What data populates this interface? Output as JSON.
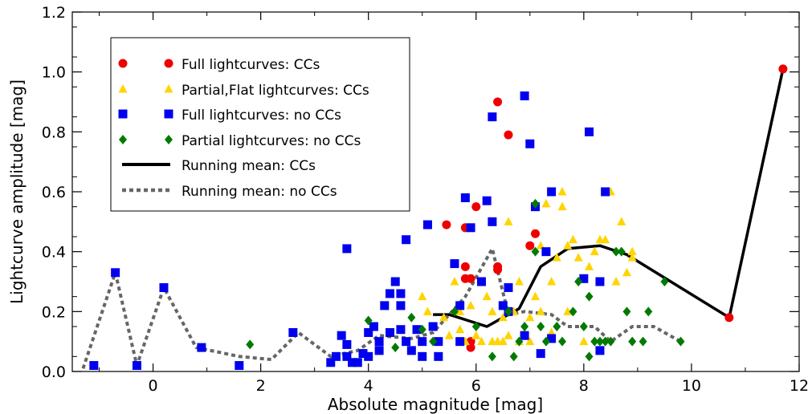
{
  "chart_data": {
    "type": "scatter",
    "title": "",
    "xlabel": "Absolute magnitude [mag]",
    "ylabel": "Lightcurve amplitude [mag]",
    "xlim": [
      -1.5,
      12
    ],
    "ylim": [
      0,
      1.2
    ],
    "xticks": [
      "0",
      "2",
      "4",
      "6",
      "8",
      "10",
      "12"
    ],
    "yticks": [
      "0.0",
      "0.2",
      "0.4",
      "0.6",
      "0.8",
      "1.0",
      "1.2"
    ],
    "grid": false,
    "legend_position": "top-left",
    "series": [
      {
        "name": "Full lightcurves: CCs",
        "marker": "circle",
        "color": "#ee0000",
        "points": [
          [
            5.45,
            0.49
          ],
          [
            5.8,
            0.48
          ],
          [
            5.8,
            0.35
          ],
          [
            5.8,
            0.31
          ],
          [
            5.9,
            0.31
          ],
          [
            5.9,
            0.1
          ],
          [
            5.9,
            0.08
          ],
          [
            6.0,
            0.55
          ],
          [
            6.4,
            0.9
          ],
          [
            6.4,
            0.35
          ],
          [
            6.4,
            0.34
          ],
          [
            6.6,
            0.79
          ],
          [
            7.0,
            0.42
          ],
          [
            7.1,
            0.46
          ],
          [
            10.7,
            0.18
          ],
          [
            11.7,
            1.01
          ]
        ]
      },
      {
        "name": "Partial,Flat lightcurves: CCs",
        "marker": "triangle",
        "color": "#ffd400",
        "points": [
          [
            5.0,
            0.25
          ],
          [
            5.1,
            0.2
          ],
          [
            5.2,
            0.15
          ],
          [
            5.4,
            0.18
          ],
          [
            5.5,
            0.12
          ],
          [
            5.6,
            0.3
          ],
          [
            5.7,
            0.2
          ],
          [
            5.7,
            0.14
          ],
          [
            5.8,
            0.1
          ],
          [
            5.9,
            0.22
          ],
          [
            6.0,
            0.12
          ],
          [
            6.1,
            0.1
          ],
          [
            6.2,
            0.25
          ],
          [
            6.3,
            0.2
          ],
          [
            6.3,
            0.1
          ],
          [
            6.4,
            0.1
          ],
          [
            6.5,
            0.18
          ],
          [
            6.5,
            0.1
          ],
          [
            6.6,
            0.5
          ],
          [
            6.6,
            0.12
          ],
          [
            6.7,
            0.2
          ],
          [
            6.8,
            0.3
          ],
          [
            6.8,
            0.1
          ],
          [
            6.9,
            0.13
          ],
          [
            7.0,
            0.18
          ],
          [
            7.0,
            0.1
          ],
          [
            7.1,
            0.25
          ],
          [
            7.2,
            0.42
          ],
          [
            7.2,
            0.2
          ],
          [
            7.3,
            0.56
          ],
          [
            7.4,
            0.3
          ],
          [
            7.4,
            0.13
          ],
          [
            7.5,
            0.38
          ],
          [
            7.6,
            0.6
          ],
          [
            7.6,
            0.55
          ],
          [
            7.7,
            0.42
          ],
          [
            7.7,
            0.2
          ],
          [
            7.8,
            0.44
          ],
          [
            7.9,
            0.38
          ],
          [
            8.0,
            0.1
          ],
          [
            8.1,
            0.35
          ],
          [
            8.2,
            0.4
          ],
          [
            8.3,
            0.44
          ],
          [
            8.4,
            0.44
          ],
          [
            8.5,
            0.6
          ],
          [
            8.6,
            0.3
          ],
          [
            8.7,
            0.5
          ],
          [
            8.8,
            0.33
          ],
          [
            8.9,
            0.4
          ],
          [
            8.9,
            0.38
          ]
        ]
      },
      {
        "name": "Full lightcurves: no CCs",
        "marker": "square",
        "color": "#0000ee",
        "points": [
          [
            -1.1,
            0.02
          ],
          [
            -0.7,
            0.33
          ],
          [
            -0.3,
            0.02
          ],
          [
            0.2,
            0.28
          ],
          [
            0.9,
            0.08
          ],
          [
            1.6,
            0.02
          ],
          [
            2.6,
            0.13
          ],
          [
            3.3,
            0.03
          ],
          [
            3.4,
            0.05
          ],
          [
            3.5,
            0.12
          ],
          [
            3.6,
            0.41
          ],
          [
            3.6,
            0.09
          ],
          [
            3.6,
            0.05
          ],
          [
            3.7,
            0.03
          ],
          [
            3.8,
            0.03
          ],
          [
            3.9,
            0.06
          ],
          [
            4.0,
            0.13
          ],
          [
            4.0,
            0.05
          ],
          [
            4.1,
            0.15
          ],
          [
            4.2,
            0.1
          ],
          [
            4.2,
            0.07
          ],
          [
            4.3,
            0.22
          ],
          [
            4.4,
            0.26
          ],
          [
            4.4,
            0.13
          ],
          [
            4.5,
            0.3
          ],
          [
            4.6,
            0.26
          ],
          [
            4.6,
            0.22
          ],
          [
            4.6,
            0.14
          ],
          [
            4.7,
            0.44
          ],
          [
            4.7,
            0.1
          ],
          [
            4.8,
            0.07
          ],
          [
            4.9,
            0.14
          ],
          [
            5.0,
            0.1
          ],
          [
            5.0,
            0.05
          ],
          [
            5.1,
            0.49
          ],
          [
            5.2,
            0.15
          ],
          [
            5.3,
            0.1
          ],
          [
            5.3,
            0.05
          ],
          [
            5.6,
            0.36
          ],
          [
            5.7,
            0.22
          ],
          [
            5.7,
            0.1
          ],
          [
            5.8,
            0.58
          ],
          [
            5.9,
            0.48
          ],
          [
            6.1,
            0.3
          ],
          [
            6.2,
            0.57
          ],
          [
            6.3,
            0.5
          ],
          [
            6.3,
            0.85
          ],
          [
            6.5,
            0.22
          ],
          [
            6.6,
            0.28
          ],
          [
            6.6,
            0.2
          ],
          [
            6.9,
            0.92
          ],
          [
            6.9,
            0.12
          ],
          [
            7.0,
            0.76
          ],
          [
            7.1,
            0.55
          ],
          [
            7.2,
            0.06
          ],
          [
            7.3,
            0.4
          ],
          [
            7.4,
            0.6
          ],
          [
            7.4,
            0.11
          ],
          [
            8.0,
            0.31
          ],
          [
            8.1,
            0.8
          ],
          [
            8.4,
            0.6
          ],
          [
            8.3,
            0.07
          ],
          [
            8.3,
            0.3
          ]
        ]
      },
      {
        "name": "Partial lightcurves: no CCs",
        "marker": "diamond",
        "color": "#007a00",
        "points": [
          [
            1.8,
            0.09
          ],
          [
            4.0,
            0.17
          ],
          [
            4.5,
            0.08
          ],
          [
            4.8,
            0.18
          ],
          [
            5.0,
            0.14
          ],
          [
            5.2,
            0.1
          ],
          [
            5.6,
            0.2
          ],
          [
            6.0,
            0.15
          ],
          [
            6.3,
            0.05
          ],
          [
            6.6,
            0.2
          ],
          [
            6.7,
            0.05
          ],
          [
            6.8,
            0.1
          ],
          [
            6.9,
            0.15
          ],
          [
            7.1,
            0.56
          ],
          [
            7.1,
            0.4
          ],
          [
            7.2,
            0.15
          ],
          [
            7.3,
            0.1
          ],
          [
            7.5,
            0.15
          ],
          [
            7.6,
            0.1
          ],
          [
            7.8,
            0.2
          ],
          [
            7.9,
            0.3
          ],
          [
            8.0,
            0.15
          ],
          [
            8.1,
            0.05
          ],
          [
            8.1,
            0.25
          ],
          [
            8.2,
            0.1
          ],
          [
            8.3,
            0.1
          ],
          [
            8.4,
            0.1
          ],
          [
            8.5,
            0.1
          ],
          [
            8.6,
            0.4
          ],
          [
            8.7,
            0.4
          ],
          [
            8.8,
            0.2
          ],
          [
            8.9,
            0.1
          ],
          [
            9.1,
            0.1
          ],
          [
            9.2,
            0.2
          ],
          [
            9.5,
            0.3
          ],
          [
            9.8,
            0.1
          ]
        ]
      }
    ],
    "lines": [
      {
        "name": "Running mean: CCs",
        "style": "solid",
        "color": "#000000",
        "x": [
          5.2,
          5.5,
          6.2,
          6.8,
          7.2,
          7.7,
          8.3,
          8.8,
          10.7,
          11.7
        ],
        "y": [
          0.19,
          0.19,
          0.15,
          0.21,
          0.35,
          0.41,
          0.42,
          0.39,
          0.18,
          1.01
        ]
      },
      {
        "name": "Running mean: no CCs",
        "style": "dotted",
        "color": "#666666",
        "x": [
          -1.3,
          -0.7,
          -0.3,
          0.2,
          0.8,
          1.6,
          2.2,
          2.7,
          3.3,
          3.8,
          4.2,
          4.8,
          5.2,
          5.8,
          6.3,
          6.6,
          6.9,
          7.4,
          7.7,
          8.2,
          8.5,
          8.9,
          9.3,
          9.8
        ],
        "y": [
          0.01,
          0.33,
          0.02,
          0.28,
          0.08,
          0.05,
          0.04,
          0.13,
          0.05,
          0.07,
          0.12,
          0.11,
          0.13,
          0.25,
          0.41,
          0.19,
          0.2,
          0.19,
          0.15,
          0.15,
          0.1,
          0.15,
          0.15,
          0.1
        ]
      }
    ]
  }
}
